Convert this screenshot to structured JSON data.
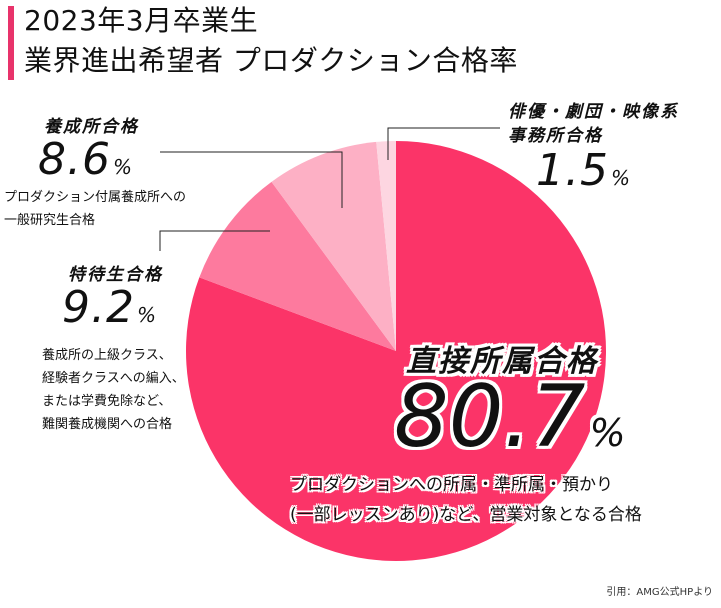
{
  "title": {
    "line1": "2023年3月卒業生",
    "line2": "業界進出希望者 プロダクション合格率"
  },
  "chart_data": {
    "type": "pie",
    "start": "top",
    "direction": "clockwise",
    "slices": [
      {
        "label": "直接所属合格",
        "value": 80.7,
        "value_text": "80.7",
        "unit": "%",
        "desc": [
          "プロダクションへの所属・準所属・預かり",
          "(一部レッスンあり)など、営業対象となる合格"
        ],
        "color": "#fb3468"
      },
      {
        "label": "特待生合格",
        "value": 9.2,
        "value_text": "9.2",
        "unit": "%",
        "desc": [
          "養成所の上級クラス、",
          "経験者クラスへの編入、",
          "または学費免除など、",
          "難関養成機関への合格"
        ],
        "color": "#fd7a9e"
      },
      {
        "label": "養成所合格",
        "value": 8.6,
        "value_text": "8.6",
        "unit": "%",
        "desc": [
          "プロダクション付属養成所への",
          "一般研究生合格"
        ],
        "color": "#fdb0c5"
      },
      {
        "label": "俳優・劇団・映像系事務所合格",
        "label_lines": [
          "俳優・劇団・映像系",
          "事務所合格"
        ],
        "value": 1.5,
        "value_text": "1.5",
        "unit": "%",
        "desc": [],
        "color": "#fdd6e1"
      }
    ]
  },
  "source": "引用：AMG公式HPより"
}
